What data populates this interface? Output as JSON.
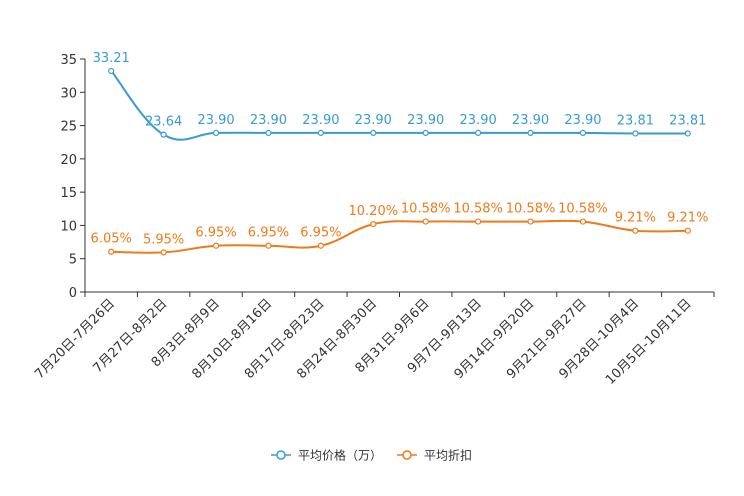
{
  "chart_data": {
    "type": "line",
    "title": "",
    "xlabel": "",
    "ylabel": "",
    "ylim": [
      0,
      35
    ],
    "yticks": [
      0,
      5,
      10,
      15,
      20,
      25,
      30,
      35
    ],
    "grid": false,
    "legend_position": "bottom-center",
    "categories": [
      "7月20日-7月26日",
      "7月27日-8月2日",
      "8月3日-8月9日",
      "8月10日-8月16日",
      "8月17日-8月23日",
      "8月24日-8月30日",
      "8月31日-9月6日",
      "9月7日-9月13日",
      "9月14日-9月20日",
      "9月21日-9月27日",
      "9月28日-10月4日",
      "10月5日-10月11日"
    ],
    "series": [
      {
        "name": "平均价格（万）",
        "color": "#3a9bd0",
        "values": [
          33.21,
          23.64,
          23.9,
          23.9,
          23.9,
          23.9,
          23.9,
          23.9,
          23.9,
          23.9,
          23.81,
          23.81
        ],
        "labels": [
          "33.21",
          "23.64",
          "23.90",
          "23.90",
          "23.90",
          "23.90",
          "23.90",
          "23.90",
          "23.90",
          "23.90",
          "23.81",
          "23.81"
        ]
      },
      {
        "name": "平均折扣",
        "color": "#f07a18",
        "values": [
          6.05,
          5.95,
          6.95,
          6.95,
          6.95,
          10.2,
          10.58,
          10.58,
          10.58,
          10.58,
          9.21,
          9.21
        ],
        "labels": [
          "6.05%",
          "5.95%",
          "6.95%",
          "6.95%",
          "6.95%",
          "10.20%",
          "10.58%",
          "10.58%",
          "10.58%",
          "10.58%",
          "9.21%",
          "9.21%"
        ]
      }
    ]
  }
}
